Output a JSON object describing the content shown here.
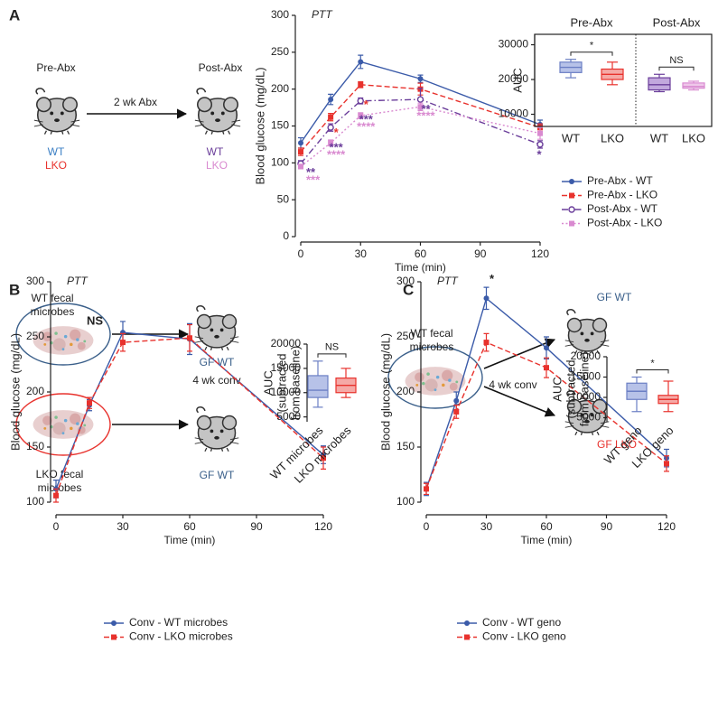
{
  "panel_labels": [
    "A",
    "B",
    "C"
  ],
  "diagrams": {
    "a": {
      "before": "Pre-Abx",
      "after": "Post-Abx",
      "treatment": "2 wk Abx",
      "before_groups": [
        "WT",
        "LKO"
      ],
      "after_groups": [
        "WT",
        "LKO"
      ]
    },
    "b": {
      "source_1": [
        "WT fecal",
        "microbes"
      ],
      "source_2": [
        "LKO fecal",
        "microbes"
      ],
      "treatment": "4 wk conv",
      "recipient_1": "GF WT",
      "recipient_2": "GF WT"
    },
    "c": {
      "source": [
        "WT fecal",
        "microbes"
      ],
      "treatment": "4 wk conv",
      "recipient_1": "GF WT",
      "recipient_2": "GF LKO"
    }
  },
  "chart_data": [
    {
      "type": "line",
      "title": "PTT",
      "x_label": "Time (min)",
      "y_label": "Blood glucose (mg/dL)",
      "x": [
        0,
        15,
        30,
        60,
        120
      ],
      "xlim": [
        0,
        120
      ],
      "xticks": [
        0,
        30,
        60,
        90,
        120
      ],
      "ylim": [
        0,
        300
      ],
      "yticks": [
        0,
        50,
        100,
        150,
        200,
        250,
        300
      ],
      "series": [
        {
          "name": "Pre-Abx - WT",
          "color": "#3b5ba9",
          "marker": "circle",
          "line_style": "solid",
          "values": [
            127,
            186,
            237,
            214,
            152
          ],
          "errors": [
            7,
            7,
            9,
            5,
            6
          ]
        },
        {
          "name": "Pre-Abx - LKO",
          "color": "#e8322d",
          "marker": "square",
          "line_style": "dashed",
          "values": [
            115,
            162,
            206,
            200,
            148
          ],
          "errors": [
            5,
            5,
            4,
            8,
            5
          ]
        },
        {
          "name": "Post-Abx - WT",
          "color": "#6a3d9a",
          "marker": "open-circle",
          "line_style": "dashdot",
          "values": [
            99,
            148,
            184,
            186,
            125
          ],
          "errors": [
            4,
            5,
            4,
            15,
            5
          ]
        },
        {
          "name": "Post-Abx - LKO",
          "color": "#d98ad0",
          "marker": "square",
          "line_style": "dotted",
          "values": [
            95,
            127,
            164,
            176,
            140
          ],
          "errors": [
            3,
            4,
            4,
            5,
            8
          ]
        }
      ],
      "annotations": [
        {
          "text": "**",
          "x": 0,
          "y": 86,
          "color": "#6a3d9a"
        },
        {
          "text": "***",
          "x": 0,
          "y": 76,
          "color": "#d98ad0"
        },
        {
          "text": "*",
          "x": 15,
          "y": 140,
          "color": "#e8322d"
        },
        {
          "text": "***",
          "x": 15,
          "y": 120,
          "color": "#6a3d9a"
        },
        {
          "text": "****",
          "x": 15,
          "y": 110,
          "color": "#d98ad0"
        },
        {
          "text": "*",
          "x": 30,
          "y": 178,
          "color": "#e8322d"
        },
        {
          "text": "***",
          "x": 30,
          "y": 158,
          "color": "#6a3d9a"
        },
        {
          "text": "****",
          "x": 30,
          "y": 148,
          "color": "#d98ad0"
        },
        {
          "text": "**",
          "x": 60,
          "y": 172,
          "color": "#6a3d9a"
        },
        {
          "text": "****",
          "x": 60,
          "y": 163,
          "color": "#d98ad0"
        },
        {
          "text": "*",
          "x": 120,
          "y": 110,
          "color": "#6a3d9a"
        }
      ]
    },
    {
      "type": "box",
      "y_label": [
        "AUC"
      ],
      "frame": true,
      "ylim": [
        6500,
        33000
      ],
      "yticks": [
        10000,
        20000,
        30000
      ],
      "groups": [
        {
          "name": "Pre-Abx",
          "categories": [
            "WT",
            "LKO"
          ],
          "boxes": [
            {
              "min": 20500,
              "q1": 22000,
              "median": 23500,
              "q3": 25000,
              "max": 25800,
              "color": "#6b7fc4",
              "fill": "#b7c2e8"
            },
            {
              "min": 18500,
              "q1": 20000,
              "median": 21500,
              "q3": 23000,
              "max": 25000,
              "color": "#e8322d",
              "fill": "#f5a9a6"
            }
          ]
        },
        {
          "name": "Post-Abx",
          "categories": [
            "WT",
            "LKO"
          ],
          "boxes": [
            {
              "min": 16500,
              "q1": 17000,
              "median": 18500,
              "q3": 20500,
              "max": 21500,
              "color": "#6a3d9a",
              "fill": "#c2a8dd"
            },
            {
              "min": 17000,
              "q1": 17500,
              "median": 18000,
              "q3": 19000,
              "max": 19500,
              "color": "#d98ad0",
              "fill": "#efc8ea"
            }
          ]
        }
      ],
      "comparisons": [
        {
          "between": [
            0,
            1
          ],
          "label": "*"
        },
        {
          "between": [
            2,
            3
          ],
          "label": "NS"
        }
      ]
    },
    {
      "type": "line",
      "title": "PTT",
      "x_label": "Time (min)",
      "y_label": "Blood glucose (mg/dL)",
      "x": [
        0,
        15,
        30,
        60,
        120
      ],
      "xlim": [
        0,
        120
      ],
      "xticks": [
        0,
        30,
        60,
        90,
        120
      ],
      "ylim": [
        100,
        300
      ],
      "yticks": [
        100,
        150,
        200,
        250,
        300
      ],
      "series": [
        {
          "name": "Conv - WT microbes",
          "color": "#3b5ba9",
          "marker": "circle",
          "line_style": "solid",
          "values": [
            112,
            188,
            254,
            248,
            143
          ],
          "errors": [
            8,
            5,
            10,
            14,
            8
          ]
        },
        {
          "name": "Conv - LKO microbes",
          "color": "#e8322d",
          "marker": "square",
          "line_style": "dashed",
          "values": [
            106,
            190,
            245,
            249,
            140
          ],
          "errors": [
            6,
            5,
            8,
            12,
            10
          ]
        }
      ],
      "annotations": [
        {
          "text": "NS",
          "x": 15,
          "y": 264,
          "color": "#222222"
        }
      ]
    },
    {
      "type": "box",
      "y_label": [
        "AUC",
        "(subtracted",
        "from baseline)"
      ],
      "ylim": [
        4000,
        20000
      ],
      "yticks": [
        5000,
        10000,
        15000,
        20000
      ],
      "categories": [
        "WT microbes",
        "LKO microbes"
      ],
      "boxes": [
        {
          "min": 7000,
          "q1": 9000,
          "median": 10500,
          "q3": 13500,
          "max": 16500,
          "color": "#6b7fc4",
          "fill": "#b7c2e8"
        },
        {
          "min": 9000,
          "q1": 10000,
          "median": 11500,
          "q3": 13000,
          "max": 15000,
          "color": "#e8322d",
          "fill": "#f5a9a6"
        }
      ],
      "comparisons": [
        {
          "between": [
            0,
            1
          ],
          "label": "NS"
        }
      ]
    },
    {
      "type": "line",
      "title": "PTT",
      "x_label": "Time (min)",
      "y_label": "Blood glucose (mg/dL)",
      "x": [
        0,
        15,
        30,
        60,
        120
      ],
      "xlim": [
        0,
        120
      ],
      "xticks": [
        0,
        30,
        60,
        90,
        120
      ],
      "ylim": [
        100,
        300
      ],
      "yticks": [
        100,
        150,
        200,
        250,
        300
      ],
      "series": [
        {
          "name": "Conv - WT geno",
          "color": "#3b5ba9",
          "marker": "circle",
          "line_style": "solid",
          "values": [
            112,
            192,
            285,
            240,
            140
          ],
          "errors": [
            6,
            8,
            10,
            10,
            8
          ]
        },
        {
          "name": "Conv - LKO geno",
          "color": "#e8322d",
          "marker": "square",
          "line_style": "dashed",
          "values": [
            112,
            182,
            245,
            222,
            135
          ],
          "errors": [
            5,
            6,
            8,
            9,
            7
          ]
        }
      ],
      "annotations": [
        {
          "text": "*",
          "x": 30,
          "y": 302,
          "color": "#222222"
        }
      ]
    },
    {
      "type": "box",
      "y_label": [
        "AUC",
        "(subtracted",
        "from baseline)"
      ],
      "ylim": [
        4000,
        20000
      ],
      "yticks": [
        5000,
        10000,
        15000,
        20000
      ],
      "categories": [
        "WT geno",
        "LKO geno"
      ],
      "boxes": [
        {
          "min": 6500,
          "q1": 9500,
          "median": 11500,
          "q3": 13500,
          "max": 15000,
          "color": "#6b7fc4",
          "fill": "#b7c2e8"
        },
        {
          "min": 6500,
          "q1": 8500,
          "median": 9500,
          "q3": 10500,
          "max": 14000,
          "color": "#e8322d",
          "fill": "#f5a9a6"
        }
      ],
      "comparisons": [
        {
          "between": [
            0,
            1
          ],
          "label": "*"
        }
      ]
    }
  ]
}
